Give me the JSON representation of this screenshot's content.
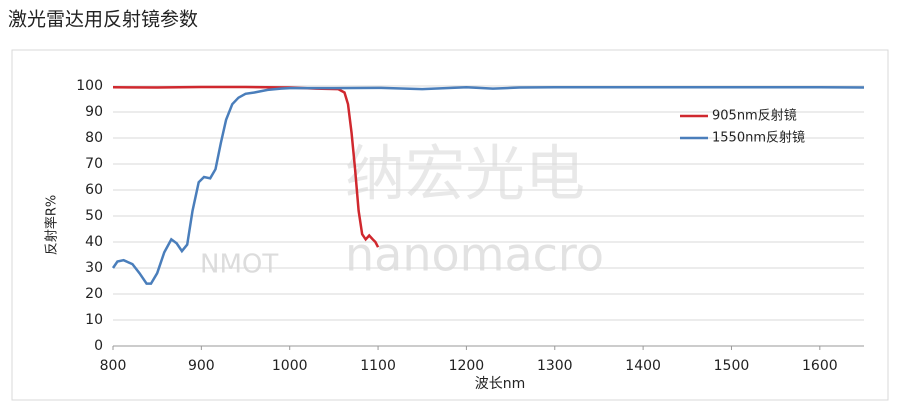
{
  "chart_data": {
    "type": "line",
    "title": "激光雷达用反射镜参数",
    "x_label": "波长nm",
    "y_label": "反射率R%",
    "watermark": [
      "纳宏光电",
      "NMOT",
      "nanomacro"
    ],
    "xlim": [
      800,
      1650
    ],
    "xticks": [
      800,
      900,
      1000,
      1100,
      1200,
      1300,
      1400,
      1500,
      1600
    ],
    "ylim": [
      0,
      100
    ],
    "yticks": [
      0,
      10,
      20,
      30,
      40,
      50,
      60,
      70,
      80,
      90,
      100
    ],
    "grid": true,
    "legend": "right",
    "series": [
      {
        "name": "905nm反射镜",
        "color": "#d0282e",
        "x": [
          800,
          850,
          900,
          950,
          1000,
          1030,
          1055,
          1062,
          1066,
          1070,
          1074,
          1078,
          1082,
          1086,
          1090,
          1094,
          1097,
          1100
        ],
        "values": [
          99.5,
          99.4,
          99.6,
          99.6,
          99.4,
          99,
          98.8,
          97.5,
          93,
          82,
          68,
          52,
          43,
          41,
          42.5,
          41,
          40,
          38
        ]
      },
      {
        "name": "1550nm反射镜",
        "color": "#4a7ebb",
        "x": [
          800,
          805,
          812,
          822,
          830,
          838,
          843,
          850,
          858,
          866,
          872,
          878,
          884,
          890,
          897,
          903,
          910,
          916,
          922,
          928,
          935,
          942,
          950,
          960,
          975,
          990,
          1000,
          1050,
          1100,
          1150,
          1200,
          1230,
          1260,
          1300,
          1400,
          1500,
          1600,
          1650
        ],
        "values": [
          30,
          32.5,
          33,
          31.5,
          28,
          24,
          24,
          28,
          36,
          41,
          39.5,
          36.5,
          39,
          52,
          63,
          65,
          64.5,
          68,
          78,
          87,
          93,
          95.5,
          97,
          97.5,
          98.5,
          99,
          99.2,
          99.2,
          99.3,
          98.8,
          99.5,
          99,
          99.4,
          99.5,
          99.5,
          99.5,
          99.5,
          99.4
        ]
      }
    ]
  }
}
